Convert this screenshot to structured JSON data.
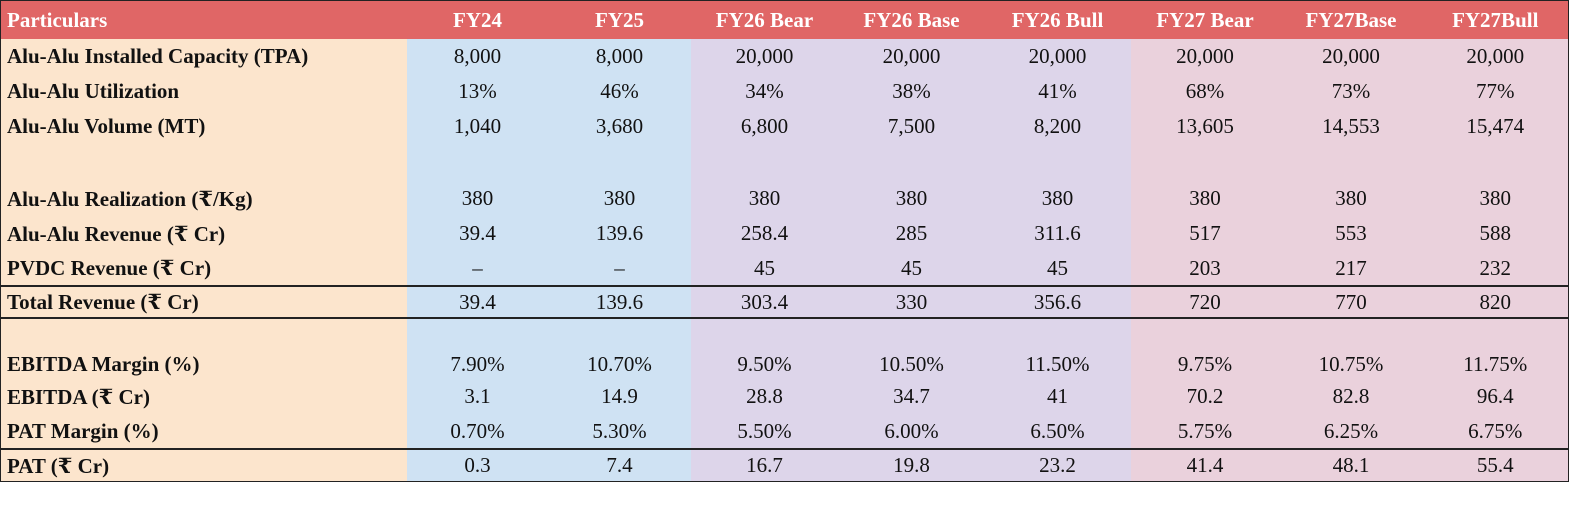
{
  "colors": {
    "header": "#e06666",
    "label": "#fce5cd",
    "fy_actual": "#cfe2f3",
    "fy26": "#ddd5ea",
    "fy27": "#ead1dc"
  },
  "header": {
    "particulars": "Particulars",
    "columns": [
      "FY24",
      "FY25",
      "FY26 Bear",
      "FY26 Base",
      "FY26 Bull",
      "FY27 Bear",
      "FY27Base",
      "FY27Bull"
    ]
  },
  "rows": {
    "installed_capacity": {
      "label": "Alu-Alu Installed Capacity (TPA)",
      "values": [
        "8,000",
        "8,000",
        "20,000",
        "20,000",
        "20,000",
        "20,000",
        "20,000",
        "20,000"
      ]
    },
    "utilization": {
      "label": "Alu-Alu Utilization",
      "values": [
        "13%",
        "46%",
        "34%",
        "38%",
        "41%",
        "68%",
        "73%",
        "77%"
      ]
    },
    "volume": {
      "label": "Alu-Alu Volume (MT)",
      "values": [
        "1,040",
        "3,680",
        "6,800",
        "7,500",
        "8,200",
        "13,605",
        "14,553",
        "15,474"
      ]
    },
    "realization": {
      "label": "Alu-Alu Realization (₹/Kg)",
      "values": [
        "380",
        "380",
        "380",
        "380",
        "380",
        "380",
        "380",
        "380"
      ]
    },
    "alu_revenue": {
      "label": "Alu-Alu Revenue (₹ Cr)",
      "values": [
        "39.4",
        "139.6",
        "258.4",
        "285",
        "311.6",
        "517",
        "553",
        "588"
      ]
    },
    "pvdc_revenue": {
      "label": "PVDC Revenue (₹ Cr)",
      "values": [
        "–",
        "–",
        "45",
        "45",
        "45",
        "203",
        "217",
        "232"
      ]
    },
    "total_revenue": {
      "label": "Total Revenue (₹ Cr)",
      "values": [
        "39.4",
        "139.6",
        "303.4",
        "330",
        "356.6",
        "720",
        "770",
        "820"
      ]
    },
    "ebitda_margin": {
      "label": "EBITDA Margin (%)",
      "values": [
        "7.90%",
        "10.70%",
        "9.50%",
        "10.50%",
        "11.50%",
        "9.75%",
        "10.75%",
        "11.75%"
      ]
    },
    "ebitda": {
      "label": "EBITDA (₹ Cr)",
      "values": [
        "3.1",
        "14.9",
        "28.8",
        "34.7",
        "41",
        "70.2",
        "82.8",
        "96.4"
      ]
    },
    "pat_margin": {
      "label": "PAT Margin (%)",
      "values": [
        "0.70%",
        "5.30%",
        "5.50%",
        "6.00%",
        "6.50%",
        "5.75%",
        "6.25%",
        "6.75%"
      ]
    },
    "pat": {
      "label": "PAT (₹ Cr)",
      "values": [
        "0.3",
        "7.4",
        "16.7",
        "19.8",
        "23.2",
        "41.4",
        "48.1",
        "55.4"
      ]
    }
  }
}
